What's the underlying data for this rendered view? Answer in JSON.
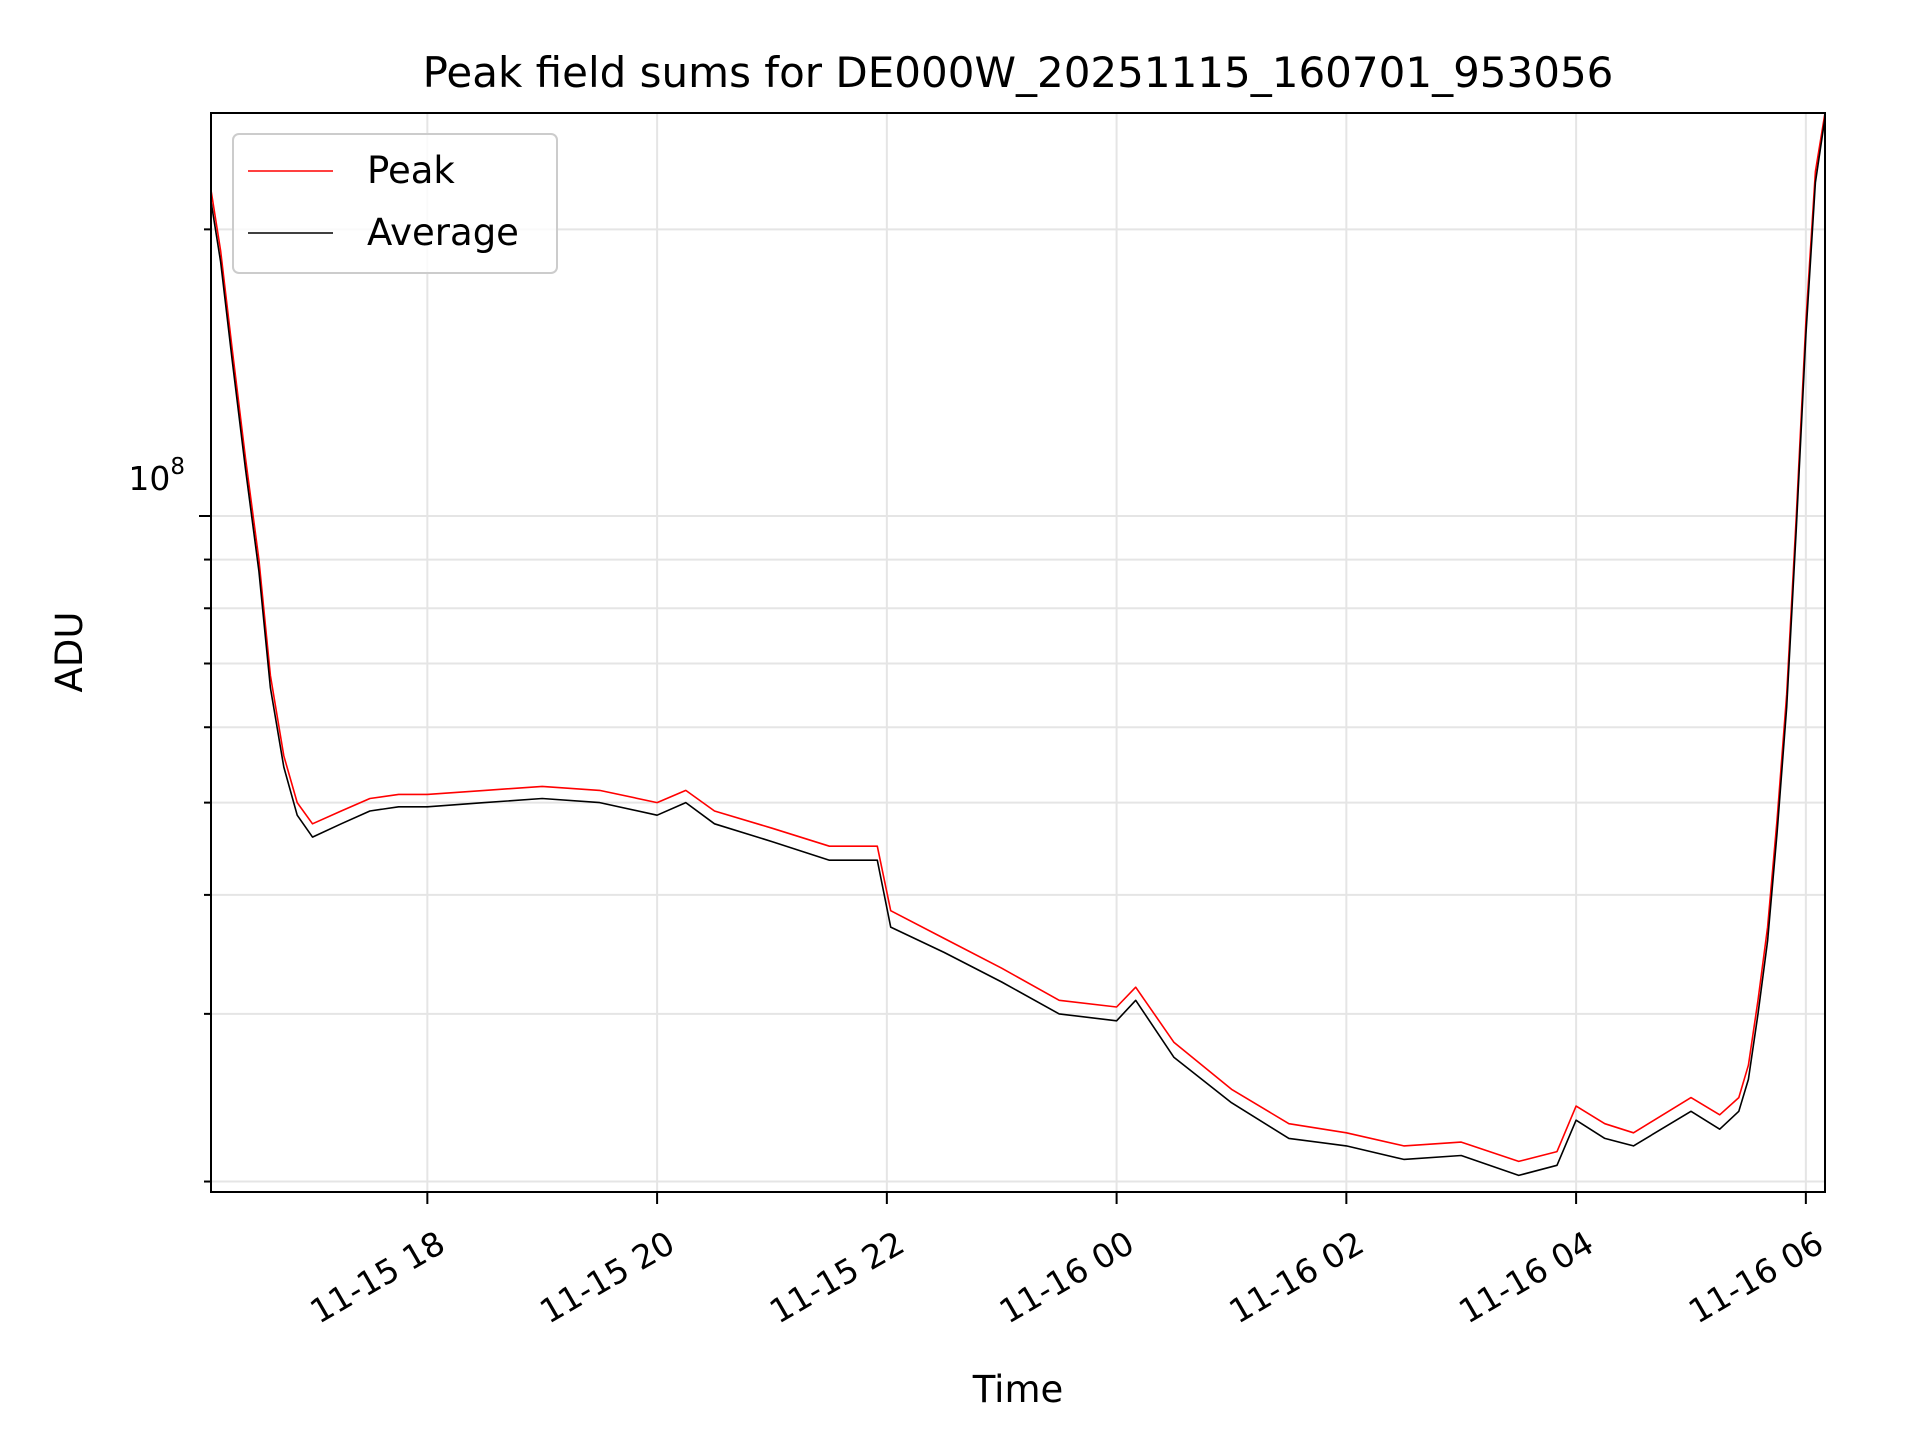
{
  "chart_data": {
    "type": "line",
    "title": "Peak field sums for DE000W_20251115_160701_953056",
    "xlabel": "Time",
    "ylabel": "ADU",
    "y_scale": "log",
    "y_major_tick_label": {
      "base": "10",
      "exponent": "8"
    },
    "x_tick_labels": [
      "11-15 18",
      "11-15 20",
      "11-15 22",
      "11-16 00",
      "11-16 02",
      "11-16 04",
      "11-16 06"
    ],
    "x_ticks": [
      "2025-11-15T18:00",
      "2025-11-15T20:00",
      "2025-11-15T22:00",
      "2025-11-16T00:00",
      "2025-11-16T02:00",
      "2025-11-16T04:00",
      "2025-11-16T06:00"
    ],
    "xlim": [
      "2025-11-15T16:07",
      "2025-11-16T06:10"
    ],
    "ylim": [
      19500000,
      265000000
    ],
    "grid": true,
    "legend": "upper-left",
    "series": [
      {
        "name": "Peak",
        "color": "#ff0000",
        "x": [
          "2025-11-15T16:07",
          "2025-11-15T16:12",
          "2025-11-15T16:18",
          "2025-11-15T16:25",
          "2025-11-15T16:32",
          "2025-11-15T16:38",
          "2025-11-15T16:45",
          "2025-11-15T16:52",
          "2025-11-15T17:00",
          "2025-11-15T17:15",
          "2025-11-15T17:30",
          "2025-11-15T17:45",
          "2025-11-15T18:00",
          "2025-11-15T18:30",
          "2025-11-15T19:00",
          "2025-11-15T19:30",
          "2025-11-15T20:00",
          "2025-11-15T20:15",
          "2025-11-15T20:30",
          "2025-11-15T21:00",
          "2025-11-15T21:30",
          "2025-11-15T21:55",
          "2025-11-15T22:02",
          "2025-11-15T22:30",
          "2025-11-15T23:00",
          "2025-11-15T23:30",
          "2025-11-16T00:00",
          "2025-11-16T00:10",
          "2025-11-16T00:30",
          "2025-11-16T01:00",
          "2025-11-16T01:30",
          "2025-11-16T02:00",
          "2025-11-16T02:30",
          "2025-11-16T03:00",
          "2025-11-16T03:30",
          "2025-11-16T03:50",
          "2025-11-16T04:00",
          "2025-11-16T04:15",
          "2025-11-16T04:30",
          "2025-11-16T05:00",
          "2025-11-16T05:15",
          "2025-11-16T05:25",
          "2025-11-16T05:30",
          "2025-11-16T05:35",
          "2025-11-16T05:40",
          "2025-11-16T05:45",
          "2025-11-16T05:50",
          "2025-11-16T05:55",
          "2025-11-16T06:00",
          "2025-11-16T06:05",
          "2025-11-16T06:10"
        ],
        "y": [
          220000000,
          190000000,
          150000000,
          115000000,
          90000000,
          68000000,
          56000000,
          50000000,
          47500000,
          49000000,
          50500000,
          51000000,
          51000000,
          51500000,
          52000000,
          51500000,
          50000000,
          51500000,
          49000000,
          47000000,
          45000000,
          45000000,
          38500000,
          36000000,
          33500000,
          31000000,
          30500000,
          32000000,
          28000000,
          25000000,
          23000000,
          22500000,
          21800000,
          22000000,
          21000000,
          21500000,
          24000000,
          23000000,
          22500000,
          24500000,
          23500000,
          24500000,
          26500000,
          31000000,
          37000000,
          48000000,
          65000000,
          100000000,
          160000000,
          230000000,
          265000000
        ]
      },
      {
        "name": "Average",
        "color": "#000000",
        "x": [
          "2025-11-15T16:07",
          "2025-11-15T16:12",
          "2025-11-15T16:18",
          "2025-11-15T16:25",
          "2025-11-15T16:32",
          "2025-11-15T16:38",
          "2025-11-15T16:45",
          "2025-11-15T16:52",
          "2025-11-15T17:00",
          "2025-11-15T17:15",
          "2025-11-15T17:30",
          "2025-11-15T17:45",
          "2025-11-15T18:00",
          "2025-11-15T18:30",
          "2025-11-15T19:00",
          "2025-11-15T19:30",
          "2025-11-15T20:00",
          "2025-11-15T20:15",
          "2025-11-15T20:30",
          "2025-11-15T21:00",
          "2025-11-15T21:30",
          "2025-11-15T21:55",
          "2025-11-15T22:02",
          "2025-11-15T22:30",
          "2025-11-15T23:00",
          "2025-11-15T23:30",
          "2025-11-16T00:00",
          "2025-11-16T00:10",
          "2025-11-16T00:30",
          "2025-11-16T01:00",
          "2025-11-16T01:30",
          "2025-11-16T02:00",
          "2025-11-16T02:30",
          "2025-11-16T03:00",
          "2025-11-16T03:30",
          "2025-11-16T03:50",
          "2025-11-16T04:00",
          "2025-11-16T04:15",
          "2025-11-16T04:30",
          "2025-11-16T05:00",
          "2025-11-16T05:15",
          "2025-11-16T05:25",
          "2025-11-16T05:30",
          "2025-11-16T05:35",
          "2025-11-16T05:40",
          "2025-11-16T05:45",
          "2025-11-16T05:50",
          "2025-11-16T05:55",
          "2025-11-16T06:00",
          "2025-11-16T06:05",
          "2025-11-16T06:10"
        ],
        "y": [
          214000000,
          185000000,
          146000000,
          112000000,
          87500000,
          66000000,
          54500000,
          48500000,
          46000000,
          47500000,
          49000000,
          49500000,
          49500000,
          50000000,
          50500000,
          50000000,
          48500000,
          50000000,
          47500000,
          45500000,
          43500000,
          43500000,
          37000000,
          34800000,
          32400000,
          30000000,
          29500000,
          31000000,
          27000000,
          24200000,
          22200000,
          21800000,
          21100000,
          21300000,
          20300000,
          20800000,
          23200000,
          22200000,
          21800000,
          23700000,
          22700000,
          23700000,
          25600000,
          30000000,
          35800000,
          46500000,
          63000000,
          97000000,
          155000000,
          224000000,
          262000000
        ]
      }
    ]
  }
}
